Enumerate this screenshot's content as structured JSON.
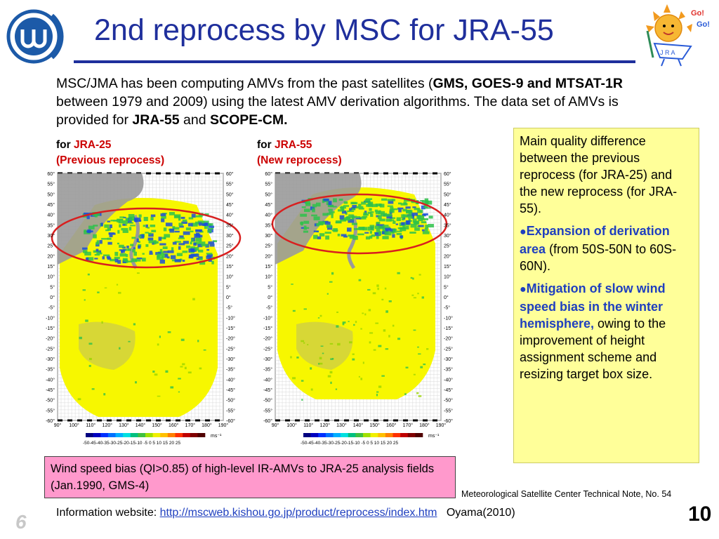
{
  "header": {
    "title": "2nd reprocess by MSC for JRA-55",
    "mascot_text_1": "Go!",
    "mascot_text_2": "Go!",
    "mascot_badge": "J R A"
  },
  "intro": {
    "part1": "MSC/JMA has been computing AMVs from the past satellites (",
    "bold1": "GMS, GOES-9 and MTSAT-1R",
    "part2": " between 1979 and 2009) using the latest AMV derivation algorithms. The data set of AMVs is provided for ",
    "bold2": "JRA-55",
    "part3": " and ",
    "bold3": "SCOPE-CM."
  },
  "panels": [
    {
      "for": "for ",
      "product": "JRA-25",
      "subtitle": "(Previous reprocess)"
    },
    {
      "for": "for ",
      "product": "JRA-55",
      "subtitle": "(New reprocess)"
    }
  ],
  "map": {
    "lat_labels": [
      "60°",
      "55°",
      "50°",
      "45°",
      "40°",
      "35°",
      "30°",
      "25°",
      "20°",
      "15°",
      "10°",
      "5°",
      "0°",
      "-5°",
      "-10°",
      "-15°",
      "-20°",
      "-25°",
      "-30°",
      "-35°",
      "-40°",
      "-45°",
      "-50°",
      "-55°",
      "-60°"
    ],
    "lat_labels_right": [
      "60°",
      "55°",
      "50°",
      "45°",
      "40°",
      "35°",
      "30°",
      "25°",
      "20°",
      "15°",
      "10°",
      "5°",
      "0°",
      "-5°",
      "-10°",
      "-15°",
      "-20°",
      "-25°",
      "-30°",
      "-35°",
      "-40°",
      "-45°",
      "-50°",
      "-55°",
      "-60°"
    ],
    "lon_labels": [
      "90°",
      "100°",
      "110°",
      "120°",
      "130°",
      "140°",
      "150°",
      "160°",
      "170°",
      "180°",
      "190°"
    ],
    "colorbar_ticks": "-50-45-40-35-30-25-20-15-10 -5  0   5  10 15 20 25",
    "colorbar_unit": "ms⁻¹",
    "colors": {
      "yellow": "#f7f700",
      "green": "#2ec24a",
      "blue": "#1a4fd8",
      "land": "#9a9a9a",
      "ellipse": "#d81f1f"
    }
  },
  "sidebox": {
    "intro": "Main quality difference between the previous reprocess (for JRA-25) and the new reprocess (for JRA-55).",
    "bullet1_bold": "Expansion of derivation area",
    "bullet1_rest": " (from 50S-50N to 60S-60N).",
    "bullet2_bold": "Mitigation of slow wind speed bias in the winter hemisphere,",
    "bullet2_rest": " owing to the improvement of height assignment scheme and resizing target box size."
  },
  "pinkbox": {
    "text": "Wind speed bias (QI>0.85) of high-level IR-AMVs to JRA-25 analysis fields (Jan.1990, GMS-4)"
  },
  "technote": "Meteorological Satellite Center Technical Note, No. 54",
  "footer": {
    "info_label": "Information website: ",
    "url": "http://mscweb.kishou.go.jp/product/reprocess/index.htm",
    "citation": "   Oyama(2010)",
    "slide_left": "6",
    "slide_right": "10"
  }
}
